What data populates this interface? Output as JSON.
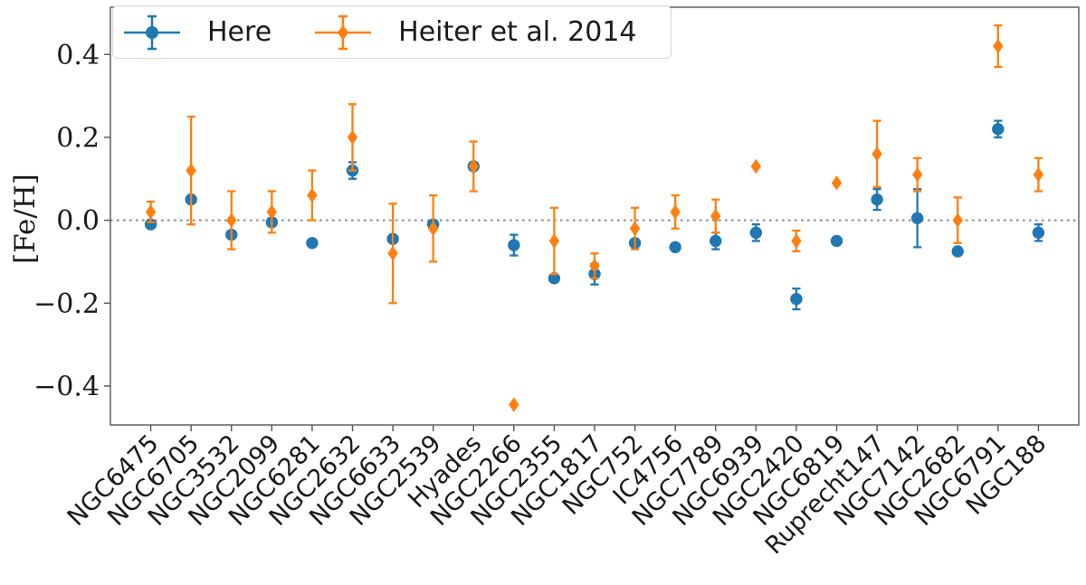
{
  "chart_data": {
    "type": "scatter",
    "title": "",
    "xlabel": "",
    "ylabel": "[Fe/H]",
    "ylim": [
      -0.494,
      0.514
    ],
    "yticks": [
      {
        "value": 0.4,
        "label": "0.4"
      },
      {
        "value": 0.2,
        "label": "0.2"
      },
      {
        "value": 0.0,
        "label": "0.0"
      },
      {
        "value": -0.2,
        "label": "−0.2"
      },
      {
        "value": -0.4,
        "label": "−0.4"
      }
    ],
    "reference_line": {
      "y": 0.0,
      "style": "dotted",
      "color": "#8a8a8a"
    },
    "grid": false,
    "legend_position": "upper-left",
    "axis_color": "#555555",
    "text_color": "#1a1a1a",
    "categories": [
      "NGC6475",
      "NGC6705",
      "NGC3532",
      "NGC2099",
      "NGC6281",
      "NGC2632",
      "NGC6633",
      "NGC2539",
      "Hyades",
      "NGC2266",
      "NGC2355",
      "NGC1817",
      "NGC752",
      "IC4756",
      "NGC7789",
      "NGC6939",
      "NGC2420",
      "NGC6819",
      "Ruprecht147",
      "NGC7142",
      "NGC2682",
      "NGC6791",
      "NGC188"
    ],
    "series": [
      {
        "name": "Here",
        "slug": "here",
        "color": "#1f77b4",
        "marker": "circle",
        "values": [
          -0.01,
          0.05,
          -0.035,
          -0.005,
          -0.055,
          0.12,
          -0.045,
          -0.01,
          0.13,
          -0.06,
          -0.14,
          -0.13,
          -0.055,
          -0.065,
          -0.05,
          -0.03,
          -0.19,
          -0.05,
          0.05,
          0.005,
          -0.075,
          0.22,
          -0.03
        ],
        "errors": [
          0,
          0,
          0,
          0,
          0,
          0.02,
          0,
          0,
          0,
          0.025,
          0,
          0.025,
          0,
          0,
          0.02,
          0.02,
          0.025,
          0,
          0.025,
          0.07,
          0,
          0.02,
          0.02
        ]
      },
      {
        "name": "Heiter et al. 2014",
        "slug": "heiter-2014",
        "color": "#ff7f0e",
        "marker": "thin-diamond",
        "values": [
          0.02,
          0.12,
          0.0,
          0.02,
          0.06,
          0.2,
          -0.08,
          -0.02,
          0.13,
          -0.445,
          -0.05,
          -0.11,
          -0.02,
          0.02,
          0.01,
          0.13,
          -0.05,
          0.09,
          0.16,
          0.11,
          0.0,
          0.42,
          0.11
        ],
        "errors": [
          0.025,
          0.13,
          0.07,
          0.05,
          0.06,
          0.08,
          0.12,
          0.08,
          0.06,
          0,
          0.08,
          0.03,
          0.05,
          0.04,
          0.04,
          0,
          0.025,
          0,
          0.08,
          0.04,
          0.055,
          0.05,
          0.04
        ]
      }
    ]
  }
}
